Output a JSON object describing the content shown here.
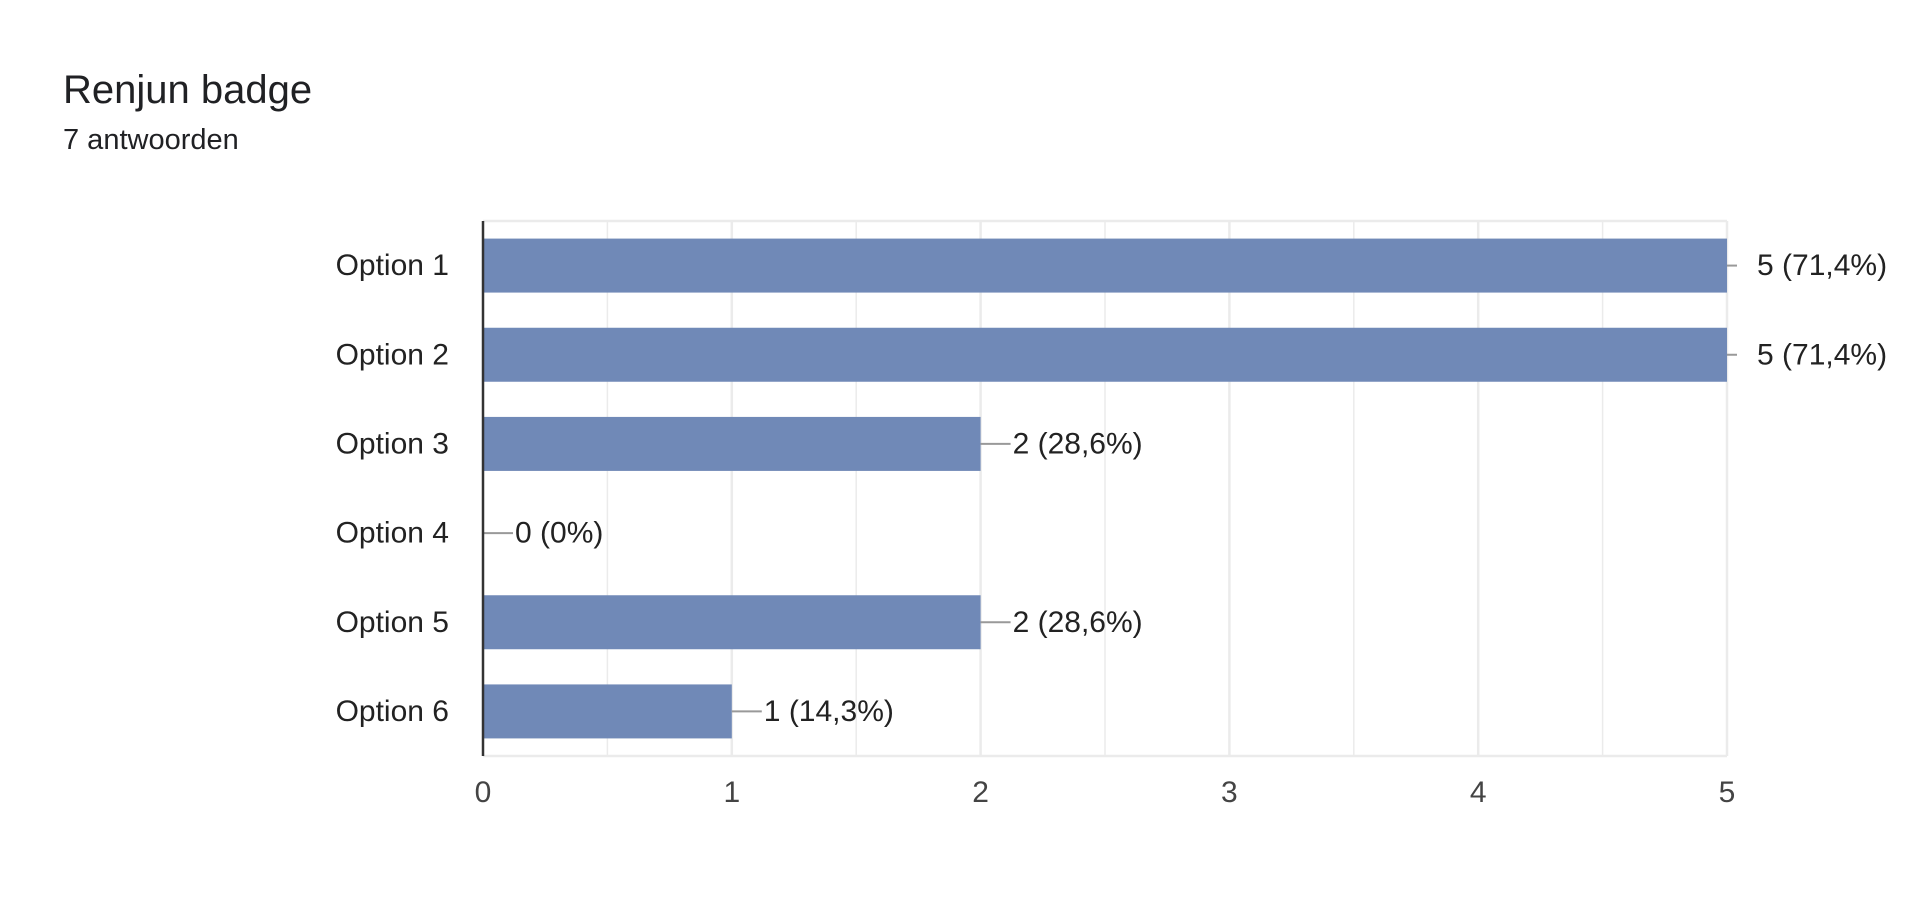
{
  "header": {
    "title": "Renjun badge",
    "subtitle": "7 antwoorden"
  },
  "colors": {
    "bar": "#7089b7",
    "gridline": "#ebebeb",
    "axis": "#333333",
    "leader": "#999999"
  },
  "chart_data": {
    "type": "bar",
    "orientation": "horizontal",
    "title": "Renjun badge",
    "subtitle": "7 antwoorden",
    "categories": [
      "Option 1",
      "Option 2",
      "Option 3",
      "Option 4",
      "Option 5",
      "Option 6"
    ],
    "values": [
      5,
      5,
      2,
      0,
      2,
      1
    ],
    "data_labels": [
      "5 (71,4%)",
      "5 (71,4%)",
      "2 (28,6%)",
      "0 (0%)",
      "2 (28,6%)",
      "1 (14,3%)"
    ],
    "xlim": [
      0,
      5
    ],
    "x_ticks": [
      0,
      1,
      2,
      3,
      4,
      5
    ],
    "grid": true,
    "legend": "none"
  }
}
